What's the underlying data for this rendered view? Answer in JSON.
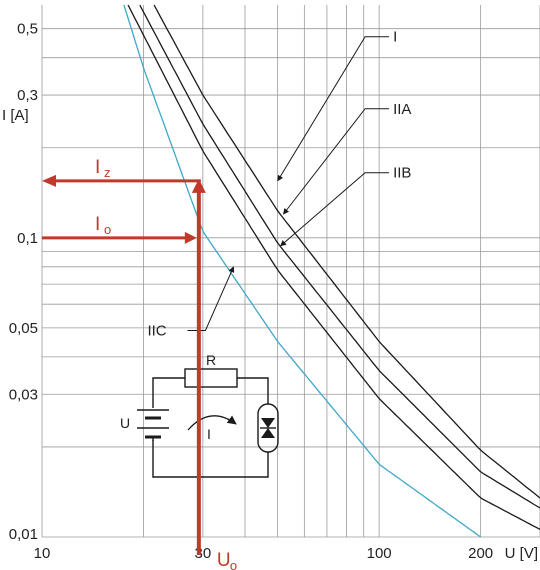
{
  "chart_data": {
    "type": "line",
    "xscale": "log",
    "yscale": "log",
    "xlim": [
      10,
      300
    ],
    "ylim": [
      0.01,
      0.6
    ],
    "grid": true,
    "xlabel": "U [V]",
    "ylabel": "I [A]",
    "x_ticks": [
      "10",
      "30",
      "100",
      "200"
    ],
    "x_tick_values": [
      10,
      30,
      100,
      200
    ],
    "y_ticks": [
      "0,01",
      "0,03",
      "0,05",
      "0,1",
      "0,3",
      "0,5"
    ],
    "y_tick_values": [
      0.01,
      0.03,
      0.05,
      0.1,
      0.3,
      0.5
    ],
    "series": [
      {
        "name": "I",
        "color": "#1a1a1a",
        "x": [
          21.5,
          30,
          50,
          100,
          200,
          300
        ],
        "y": [
          0.6,
          0.3,
          0.123,
          0.045,
          0.0195,
          0.0135
        ]
      },
      {
        "name": "IIA",
        "color": "#1a1a1a",
        "x": [
          19.5,
          30,
          50,
          100,
          200,
          300
        ],
        "y": [
          0.6,
          0.24,
          0.096,
          0.036,
          0.0165,
          0.0125
        ]
      },
      {
        "name": "IIB",
        "color": "#1a1a1a",
        "x": [
          18,
          30,
          50,
          100,
          200,
          300
        ],
        "y": [
          0.6,
          0.195,
          0.078,
          0.029,
          0.0135,
          0.0106
        ]
      },
      {
        "name": "IIC",
        "color": "#3fa7c8",
        "x": [
          17.5,
          20,
          30,
          50,
          100,
          200
        ],
        "y": [
          0.6,
          0.37,
          0.105,
          0.045,
          0.0175,
          0.01
        ]
      }
    ],
    "callouts": [
      {
        "label": "I",
        "at": [
          50,
          0.155
        ],
        "text_at": [
          110,
          0.47
        ]
      },
      {
        "label": "IIA",
        "at": [
          52,
          0.12
        ],
        "text_at": [
          110,
          0.27
        ]
      },
      {
        "label": "IIB",
        "at": [
          51,
          0.094
        ],
        "text_at": [
          110,
          0.165
        ]
      },
      {
        "label": "IIC",
        "at": [
          37,
          0.08
        ],
        "text_at": [
          22,
          0.049
        ]
      }
    ],
    "annotations": {
      "Iz": {
        "label": "I",
        "sub": "z",
        "y": 0.155,
        "x_from": 29.5
      },
      "Io": {
        "label": "I",
        "sub": "o",
        "y": 0.1,
        "x_from": 29.5
      },
      "Uo": {
        "label": "U",
        "sub": "o",
        "x": 30,
        "y_to": 0.155
      },
      "color": "#c0392b"
    },
    "circuit": {
      "resistor_label": "R",
      "voltage_label": "U",
      "current_label": "I"
    }
  }
}
